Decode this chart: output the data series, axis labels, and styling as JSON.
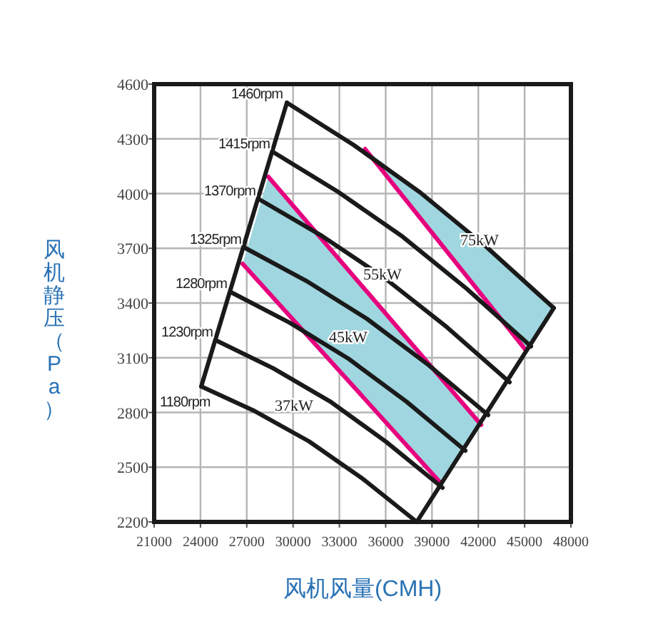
{
  "chart_data": {
    "type": "line",
    "xlabel": "风机风量(CMH)",
    "ylabel": "风机静压（Pa）",
    "xlim": [
      21000,
      48000
    ],
    "xticks": [
      21000,
      24000,
      27000,
      30000,
      33000,
      36000,
      39000,
      42000,
      45000,
      48000
    ],
    "ylim": [
      2200,
      4600
    ],
    "yticks": [
      2200,
      2500,
      2800,
      3100,
      3400,
      3700,
      4000,
      4300,
      4600
    ],
    "grid": true,
    "legend": false,
    "marker": "none",
    "line_style": "solid",
    "series": [
      {
        "type": "area",
        "color": "#a0d6df",
        "x": [
          28400,
          42180,
          39590,
          26730
        ],
        "values": [
          4092,
          2732,
          2411,
          3615
        ]
      },
      {
        "type": "area",
        "color": "#a0d6df",
        "x": [
          34670,
          38250,
          42570,
          46890,
          45040
        ],
        "values": [
          4244,
          4005,
          3704,
          3373,
          3145
        ]
      },
      {
        "color": "#e6007e",
        "x": [
          28400,
          42180
        ],
        "values": [
          4092,
          2732
        ]
      },
      {
        "color": "#e6007e",
        "x": [
          26730,
          39590
        ],
        "values": [
          3615,
          2411
        ]
      },
      {
        "color": "#e6007e",
        "x": [
          34670,
          45040
        ],
        "values": [
          4244,
          3145
        ]
      },
      {
        "color": "#1a1a1a",
        "x": [
          24050,
          29600
        ],
        "values": [
          2943,
          4498
        ]
      },
      {
        "color": "#1a1a1a",
        "x": [
          38010,
          46890
        ],
        "values": [
          2200,
          3373
        ]
      },
      {
        "name": "1460rpm",
        "color": "#1a1a1a",
        "x": [
          29600,
          33920,
          38250,
          42570,
          46890
        ],
        "values": [
          4498,
          4267,
          4005,
          3704,
          3373
        ]
      },
      {
        "name": "1415rpm",
        "color": "#1a1a1a",
        "x": [
          28770,
          32930,
          37090,
          41250,
          45410
        ],
        "values": [
          4225,
          4009,
          3764,
          3478,
          3162
        ]
      },
      {
        "name": "1370rpm",
        "color": "#1a1a1a",
        "x": [
          27840,
          31890,
          35930,
          39980,
          44020
        ],
        "values": [
          3967,
          3767,
          3537,
          3266,
          2966
        ]
      },
      {
        "name": "1325rpm",
        "color": "#1a1a1a",
        "x": [
          26920,
          30850,
          34780,
          38710,
          42640
        ],
        "values": [
          3701,
          3522,
          3314,
          3065,
          2786
        ]
      },
      {
        "name": "1280rpm",
        "color": "#1a1a1a",
        "x": [
          25990,
          29780,
          33580,
          37370,
          41160
        ],
        "values": [
          3459,
          3292,
          3095,
          2858,
          2591
        ]
      },
      {
        "name": "1230rpm",
        "color": "#1a1a1a",
        "x": [
          25070,
          28720,
          32380,
          36030,
          39680
        ],
        "values": [
          3193,
          3042,
          2861,
          2639,
          2388
        ]
      },
      {
        "name": "1180rpm",
        "color": "#1a1a1a",
        "x": [
          24050,
          27540,
          31030,
          34520,
          38010
        ],
        "values": [
          2943,
          2807,
          2642,
          2436,
          2200
        ]
      }
    ],
    "annotations": [
      "37kW",
      "45kW",
      "55kW",
      "75kW"
    ]
  }
}
